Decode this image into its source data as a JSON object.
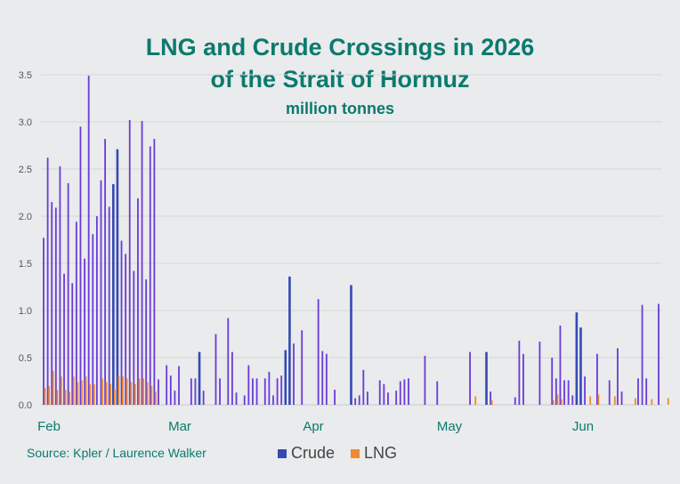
{
  "chart_data": {
    "type": "bar",
    "title_lines": [
      "LNG and Crude Crossings in 2026",
      "of the Strait of Hormuz"
    ],
    "subtitle": "million tonnes",
    "source": "Source: Kpler / Laurence Walker",
    "ylim": [
      0,
      3.5
    ],
    "yticks": [
      "0.0",
      "0.5",
      "1.0",
      "1.5",
      "2.0",
      "2.5",
      "3.0",
      "3.5"
    ],
    "xticks": [
      "Feb",
      "Mar",
      "Apr",
      "May",
      "Jun"
    ],
    "grid": true,
    "legend_position": "bottom",
    "colors": {
      "Crude": "#6a3bd8",
      "CrudeHighlight": "#3549b5",
      "LNG": "#f08a2c"
    },
    "series": [
      {
        "name": "Crude",
        "values": [
          1.77,
          2.62,
          2.15,
          2.09,
          2.53,
          1.39,
          2.35,
          1.29,
          1.94,
          2.95,
          1.55,
          3.49,
          1.81,
          2.0,
          2.38,
          2.82,
          2.1,
          2.34,
          2.71,
          1.74,
          1.6,
          3.02,
          1.42,
          2.19,
          3.01,
          1.33,
          2.74,
          2.82,
          0.27,
          0,
          0.42,
          0.31,
          0.15,
          0.41,
          0,
          0,
          0.28,
          0.28,
          0.56,
          0.15,
          0,
          0,
          0.75,
          0.28,
          0,
          0.92,
          0.56,
          0.13,
          0,
          0.1,
          0.42,
          0.28,
          0.28,
          0,
          0.28,
          0.35,
          0.1,
          0.28,
          0.31,
          0.58,
          1.36,
          0.65,
          0,
          0.79,
          0,
          0,
          0,
          1.12,
          0.57,
          0.54,
          0,
          0.16,
          0,
          0,
          0,
          1.27,
          0.07,
          0.1,
          0.37,
          0.14,
          0,
          0,
          0.26,
          0.22,
          0.13,
          0,
          0.15,
          0.25,
          0.27,
          0.28,
          0,
          0,
          0,
          0.52,
          0,
          0,
          0.25,
          0,
          0,
          0,
          0,
          0,
          0,
          0,
          0.56,
          0,
          0,
          0,
          0.56,
          0.14,
          0,
          0,
          0,
          0,
          0,
          0.08,
          0.68,
          0.54,
          0,
          0,
          0,
          0.67,
          0,
          0,
          0.5,
          0.28,
          0.84,
          0.26,
          0.26,
          0.1,
          0.98,
          0.82,
          0.3,
          0,
          0,
          0.54,
          0,
          0,
          0.26,
          0,
          0.6,
          0.14,
          0,
          0,
          0,
          0.28,
          1.06,
          0.28,
          0,
          0,
          1.07
        ],
        "highlight_indices": [
          17,
          18,
          38,
          59,
          60,
          75,
          108,
          130,
          131
        ]
      },
      {
        "name": "LNG",
        "values": [
          0.18,
          0.2,
          0.36,
          0.16,
          0.3,
          0.16,
          0.14,
          0.3,
          0.24,
          0.26,
          0.3,
          0.22,
          0.22,
          0,
          0.28,
          0.24,
          0.22,
          0.16,
          0.3,
          0.3,
          0.28,
          0.24,
          0.22,
          0.28,
          0.28,
          0.24,
          0.2,
          0.14,
          0,
          0,
          0,
          0,
          0,
          0,
          0,
          0,
          0,
          0,
          0,
          0,
          0,
          0,
          0,
          0,
          0,
          0,
          0,
          0,
          0,
          0,
          0,
          0,
          0,
          0,
          0,
          0,
          0,
          0,
          0,
          0,
          0,
          0,
          0,
          0,
          0,
          0,
          0,
          0,
          0,
          0,
          0,
          0,
          0,
          0,
          0,
          0,
          0,
          0,
          0,
          0,
          0,
          0,
          0,
          0,
          0,
          0,
          0,
          0,
          0,
          0,
          0,
          0,
          0,
          0,
          0,
          0,
          0,
          0,
          0,
          0,
          0,
          0,
          0,
          0,
          0,
          0.09,
          0,
          0,
          0,
          0.05,
          0,
          0,
          0,
          0,
          0,
          0,
          0,
          0,
          0,
          0,
          0,
          0,
          0,
          0,
          0.05,
          0.11,
          0.06,
          0,
          0,
          0,
          0,
          0,
          0,
          0.09,
          0,
          0.11,
          0,
          0,
          0,
          0.09,
          0,
          0,
          0,
          0,
          0.07,
          0,
          0,
          0,
          0.06,
          0,
          0,
          0,
          0.07
        ]
      }
    ]
  }
}
